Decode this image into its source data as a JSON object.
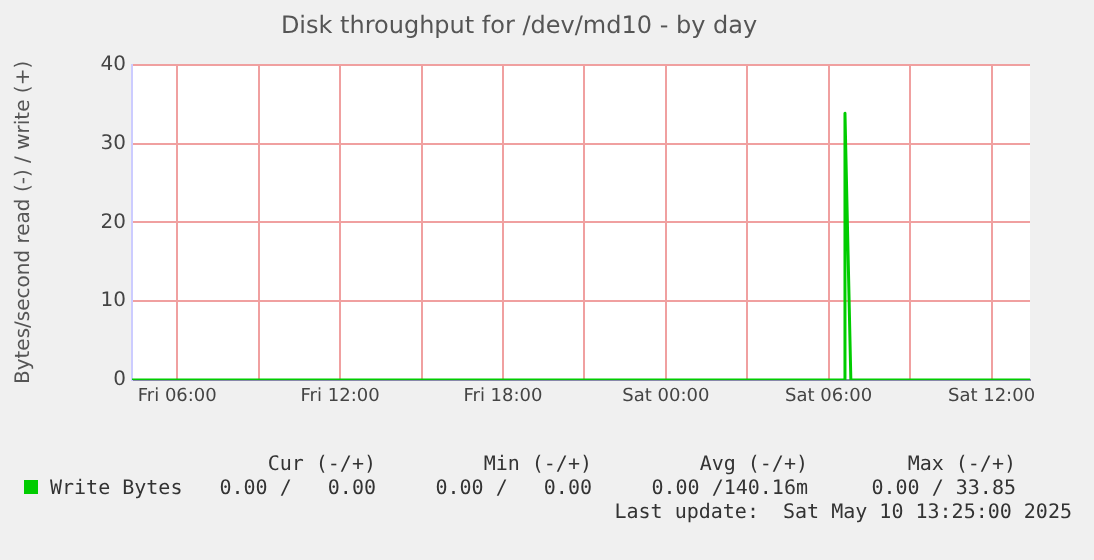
{
  "chart_data": {
    "type": "line",
    "title": "Disk throughput for /dev/md10 - by day",
    "ylabel": "Bytes/second read (-) / write (+)",
    "x": [
      "2025-05-09T04:20",
      "2025-05-10T06:35",
      "2025-05-10T06:36",
      "2025-05-10T06:49",
      "2025-05-10T13:25"
    ],
    "series": [
      {
        "name": "Write Bytes",
        "color": "#00cc00",
        "values": [
          0,
          0,
          33.85,
          0,
          0
        ]
      }
    ],
    "xlim": [
      "2025-05-09T04:20",
      "2025-05-10T13:25"
    ],
    "xticks": [
      {
        "value": "2025-05-09T06:00",
        "label": "Fri 06:00"
      },
      {
        "value": "2025-05-09T09:00",
        "label": null
      },
      {
        "value": "2025-05-09T12:00",
        "label": "Fri 12:00"
      },
      {
        "value": "2025-05-09T15:00",
        "label": null
      },
      {
        "value": "2025-05-09T18:00",
        "label": "Fri 18:00"
      },
      {
        "value": "2025-05-09T21:00",
        "label": null
      },
      {
        "value": "2025-05-10T00:00",
        "label": "Sat 00:00"
      },
      {
        "value": "2025-05-10T03:00",
        "label": null
      },
      {
        "value": "2025-05-10T06:00",
        "label": "Sat 06:00"
      },
      {
        "value": "2025-05-10T09:00",
        "label": null
      },
      {
        "value": "2025-05-10T12:00",
        "label": "Sat 12:00"
      }
    ],
    "ylim": [
      0,
      40
    ],
    "yticks": [
      0,
      10,
      20,
      30,
      40
    ],
    "grid": true,
    "legend": "bottom left",
    "marker": "none",
    "line_style": "solid",
    "annotations": [
      "Cur (-/+)",
      "Min (-/+)",
      "Avg (-/+)",
      "Max (-/+)",
      "0.00 /   0.00",
      "0.00 /   0.00",
      "0.00 /140.16m",
      "0.00 / 33.85",
      "Last update:  Sat May 10 13:25:00 2025"
    ]
  }
}
